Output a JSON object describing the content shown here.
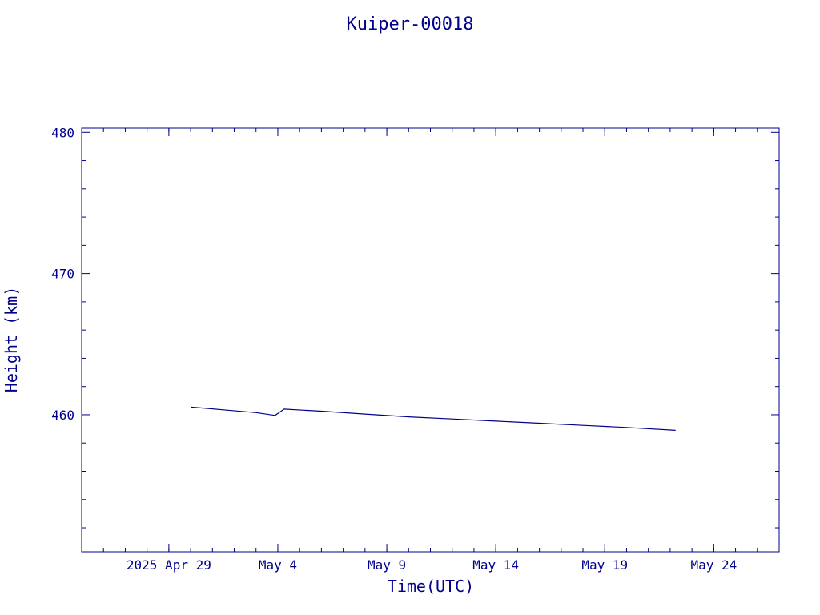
{
  "chart_data": {
    "type": "line",
    "title": "Kuiper-00018",
    "xlabel": "Time(UTC)",
    "ylabel": "Height (km)",
    "x_axis": {
      "type": "date",
      "range": [
        "2025-04-25",
        "2025-05-27"
      ],
      "ticks": [
        {
          "date": "2025-04-29",
          "label": "2025 Apr 29"
        },
        {
          "date": "2025-05-04",
          "label": "May  4"
        },
        {
          "date": "2025-05-09",
          "label": "May  9"
        },
        {
          "date": "2025-05-14",
          "label": "May 14"
        },
        {
          "date": "2025-05-19",
          "label": "May 19"
        },
        {
          "date": "2025-05-24",
          "label": "May 24"
        }
      ]
    },
    "y_axis": {
      "range": [
        450.3,
        480.3
      ],
      "ticks": [
        460,
        470,
        480
      ]
    },
    "grid": false,
    "color": "#00008b",
    "series": [
      {
        "x": [
          "2025-04-30T00:00",
          "2025-05-01T12:00",
          "2025-05-03T00:00",
          "2025-05-03T21:00",
          "2025-05-04T07:00",
          "2025-05-06T00:00",
          "2025-05-08T00:00",
          "2025-05-10T00:00",
          "2025-05-12T00:00",
          "2025-05-14T00:00",
          "2025-05-16T00:00",
          "2025-05-18T00:00",
          "2025-05-20T00:00",
          "2025-05-22T06:00"
        ],
        "y": [
          460.55,
          460.35,
          460.15,
          459.95,
          460.4,
          460.25,
          460.05,
          459.85,
          459.7,
          459.55,
          459.4,
          459.25,
          459.1,
          458.9
        ]
      }
    ]
  }
}
